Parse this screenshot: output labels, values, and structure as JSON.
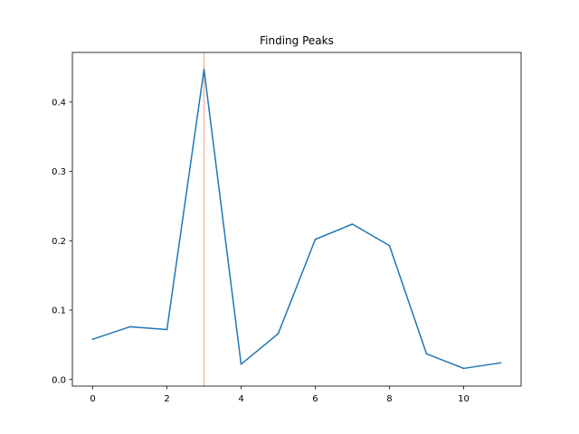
{
  "chart_data": {
    "type": "line",
    "title": "Finding Peaks",
    "xlabel": "",
    "ylabel": "",
    "xlim": [
      -0.55,
      11.55
    ],
    "ylim": [
      -0.0095,
      0.4715
    ],
    "xticks": [
      0,
      2,
      4,
      6,
      8,
      10
    ],
    "xtick_labels": [
      "0",
      "2",
      "4",
      "6",
      "8",
      "10"
    ],
    "yticks": [
      0.0,
      0.1,
      0.2,
      0.3,
      0.4
    ],
    "ytick_labels": [
      "0.0",
      "0.1",
      "0.2",
      "0.3",
      "0.4"
    ],
    "grid": false,
    "legend": "none",
    "series": [
      {
        "color": "#1f77b4",
        "x": [
          0,
          1,
          2,
          3,
          4,
          5,
          6,
          7,
          8,
          9,
          10,
          11
        ],
        "y": [
          0.058,
          0.076,
          0.072,
          0.447,
          0.022,
          0.066,
          0.202,
          0.224,
          0.193,
          0.037,
          0.016,
          0.024
        ]
      }
    ],
    "vlines": [
      {
        "x": 3,
        "color": "#f4b6a8"
      }
    ]
  }
}
